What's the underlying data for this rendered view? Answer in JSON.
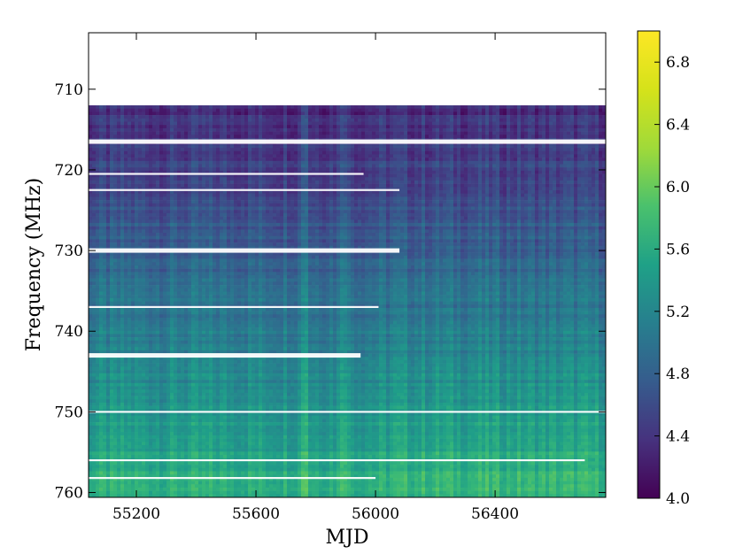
{
  "chart_data": {
    "type": "heatmap",
    "xlabel": "MJD",
    "ylabel": "Frequency (MHz)",
    "x_range": [
      55040,
      56770
    ],
    "y_range": [
      703,
      760.6
    ],
    "y_axis_inverted": true,
    "x_ticks": [
      55200,
      55600,
      56000,
      56400
    ],
    "y_ticks": [
      710,
      720,
      730,
      740,
      750,
      760
    ],
    "data_extent_top_mhz": 712,
    "colorbar": {
      "colormap": "viridis",
      "min": 4.0,
      "max": 7.0,
      "ticks": [
        "4.0",
        "4.4",
        "4.8",
        "5.2",
        "5.6",
        "6.0",
        "6.4",
        "6.8"
      ]
    },
    "value_trend": "values rise from about 4.3 near 703 MHz to about 6.0 near 760 MHz; vertical bright streaks near MJD 55760 and 55890",
    "masked_bands_mhz": [
      709,
      716.5,
      720.5,
      722.5,
      730,
      737,
      743,
      750,
      756,
      758.2
    ]
  }
}
